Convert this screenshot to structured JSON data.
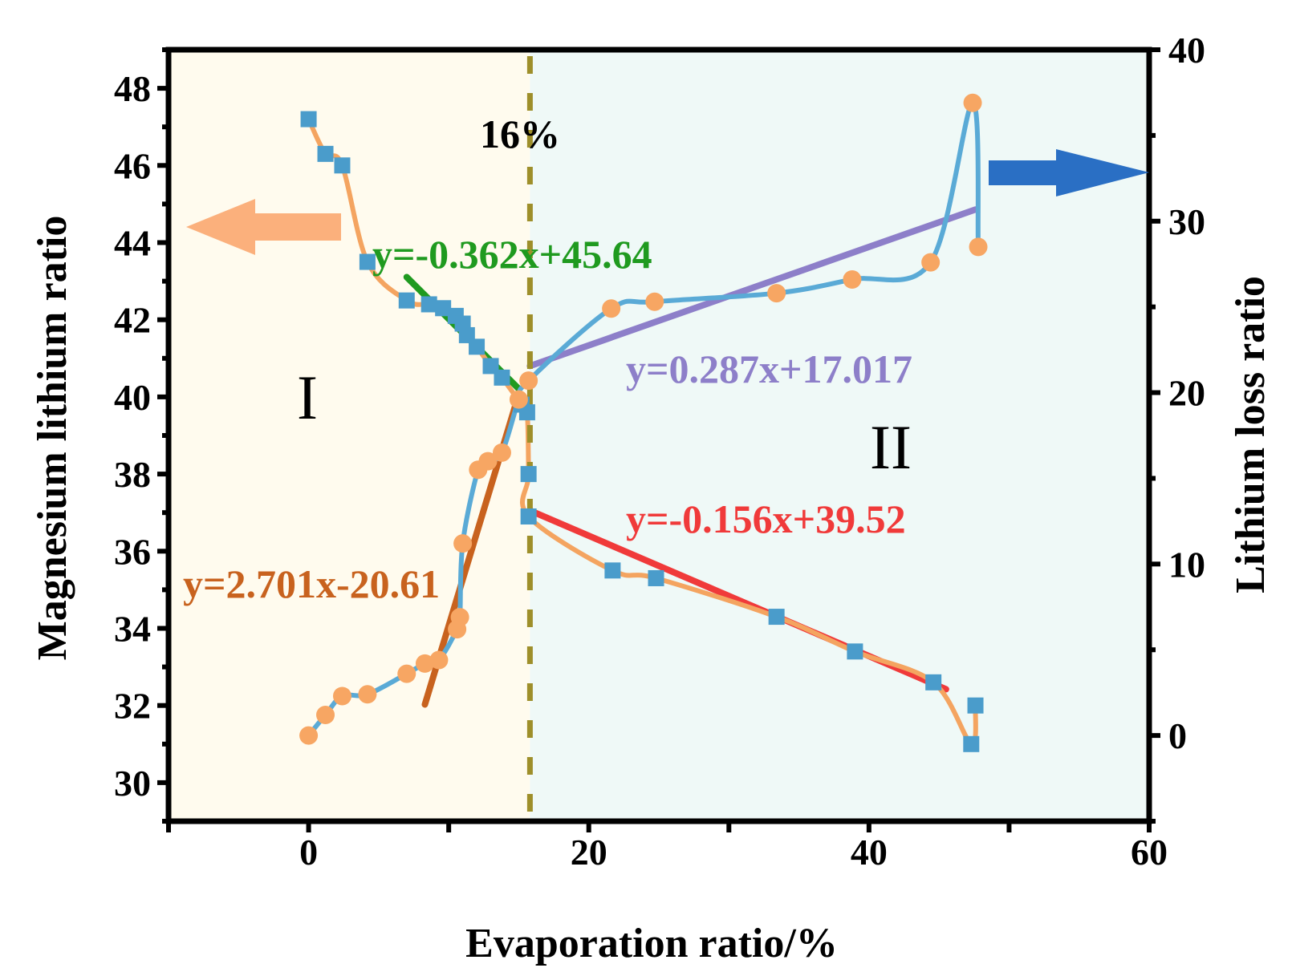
{
  "chart_data": {
    "type": "line",
    "xlabel": "Evaporation ratio/%",
    "ylabel_left": "Magnesium lithium ratio",
    "ylabel_right": "Lithium loss ratio",
    "xlim": [
      -10,
      60
    ],
    "ylim_left": [
      29,
      49
    ],
    "ylim_right": [
      -5,
      40
    ],
    "x_ticks": [
      0,
      20,
      40,
      60
    ],
    "y_left_ticks": [
      30,
      32,
      34,
      36,
      38,
      40,
      42,
      44,
      46,
      48
    ],
    "y_right_ticks": [
      0,
      10,
      20,
      30,
      40
    ],
    "threshold": {
      "x": 15.8,
      "label": "16%"
    },
    "regions": [
      {
        "label": "I",
        "x_range": [
          -10,
          15.8
        ],
        "color": "#fffbee"
      },
      {
        "label": "II",
        "x_range": [
          15.8,
          60
        ],
        "color": "#eff9f7"
      }
    ],
    "series": [
      {
        "name": "Magnesium lithium ratio",
        "axis": "left",
        "marker": "square",
        "marker_color": "#4a9ccb",
        "line_color": "#f4a460",
        "points": [
          [
            0,
            47.2
          ],
          [
            1.2,
            46.3
          ],
          [
            2.4,
            46.0
          ],
          [
            4.2,
            43.5
          ],
          [
            7.0,
            42.5
          ],
          [
            8.6,
            42.4
          ],
          [
            9.6,
            42.3
          ],
          [
            10.5,
            42.1
          ],
          [
            11.0,
            41.9
          ],
          [
            11.3,
            41.6
          ],
          [
            12.0,
            41.3
          ],
          [
            13.0,
            40.8
          ],
          [
            13.8,
            40.5
          ],
          [
            15.2,
            39.8
          ],
          [
            15.6,
            39.6
          ],
          [
            15.7,
            38.0
          ],
          [
            15.7,
            36.9
          ],
          [
            21.7,
            35.5
          ],
          [
            24.8,
            35.3
          ],
          [
            33.4,
            34.3
          ],
          [
            39.0,
            33.4
          ],
          [
            44.6,
            32.6
          ],
          [
            47.3,
            31.0
          ],
          [
            47.6,
            32.0
          ]
        ]
      },
      {
        "name": "Lithium loss ratio",
        "axis": "right",
        "marker": "circle",
        "marker_color": "#f7a663",
        "line_color": "#5aaad6",
        "points": [
          [
            0,
            0
          ],
          [
            1.2,
            1.2
          ],
          [
            2.4,
            2.3
          ],
          [
            4.2,
            2.4
          ],
          [
            7.0,
            3.6
          ],
          [
            8.3,
            4.2
          ],
          [
            9.3,
            4.4
          ],
          [
            10.6,
            6.2
          ],
          [
            10.8,
            6.9
          ],
          [
            11.0,
            11.2
          ],
          [
            12.1,
            15.5
          ],
          [
            12.8,
            16.0
          ],
          [
            13.8,
            16.5
          ],
          [
            15.0,
            19.6
          ],
          [
            15.7,
            20.7
          ],
          [
            21.6,
            24.9
          ],
          [
            24.7,
            25.3
          ],
          [
            33.4,
            25.8
          ],
          [
            38.8,
            26.6
          ],
          [
            44.4,
            27.6
          ],
          [
            47.4,
            36.9
          ],
          [
            47.8,
            28.5
          ]
        ]
      }
    ],
    "fits": [
      {
        "label": "y=-0.362x+45.64",
        "color": "#1f9a1f",
        "axis": "left",
        "x_range": [
          7.0,
          15.0
        ],
        "slope": -0.362,
        "intercept": 45.64
      },
      {
        "label": "y=2.701x-20.61",
        "color": "#c8621e",
        "axis": "right",
        "x_range": [
          8.3,
          15.0
        ],
        "slope": 2.701,
        "intercept": -20.61
      },
      {
        "label": "y=0.287x+17.017",
        "color": "#8d7fc9",
        "axis": "right",
        "x_range": [
          15.8,
          47.6
        ],
        "slope": 0.287,
        "intercept": 17.017
      },
      {
        "label": "y=-0.156x+39.52",
        "color": "#f03a3a",
        "axis": "left",
        "x_range": [
          15.8,
          45.5
        ],
        "slope": -0.156,
        "intercept": 39.52
      }
    ]
  }
}
